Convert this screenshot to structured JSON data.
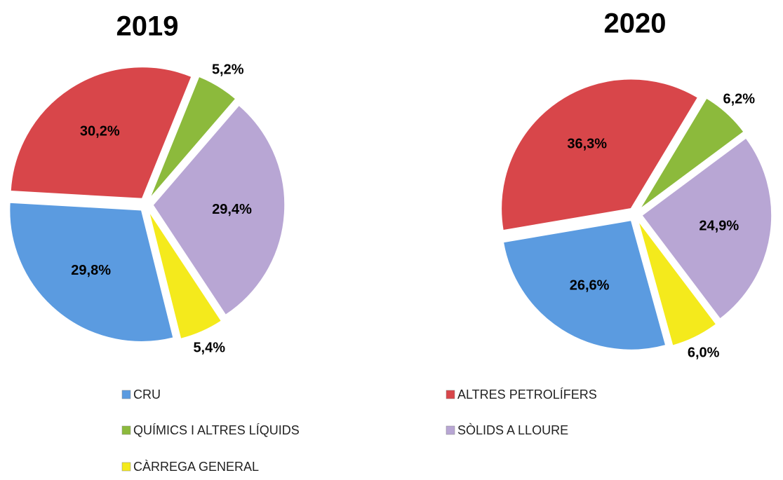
{
  "chart_data": [
    {
      "type": "pie",
      "title": "2019",
      "categories": [
        "CRU",
        "ALTRES PETROLÍFERS",
        "QUÍMICS I ALTRES LÍQUIDS",
        "SÒLIDS A LLOURE",
        "CÀRREGA GENERAL"
      ],
      "values": [
        29.8,
        30.2,
        5.2,
        29.4,
        5.4
      ],
      "value_labels": [
        "29,8%",
        "30,2%",
        "5,2%",
        "29,4%",
        "5,4%"
      ],
      "colors": [
        "#5b9be0",
        "#d8464a",
        "#8cba3c",
        "#b8a6d4",
        "#f4ea1c"
      ],
      "legend": "bottom"
    },
    {
      "type": "pie",
      "title": "2020",
      "categories": [
        "CRU",
        "ALTRES PETROLÍFERS",
        "QUÍMICS I ALTRES LÍQUIDS",
        "SÒLIDS A LLOURE",
        "CÀRREGA GENERAL"
      ],
      "values": [
        26.6,
        36.3,
        6.2,
        24.9,
        6.0
      ],
      "value_labels": [
        "26,6%",
        "36,3%",
        "6,2%",
        "24,9%",
        "6,0%"
      ],
      "colors": [
        "#5b9be0",
        "#d8464a",
        "#8cba3c",
        "#b8a6d4",
        "#f4ea1c"
      ],
      "legend": "bottom"
    }
  ]
}
